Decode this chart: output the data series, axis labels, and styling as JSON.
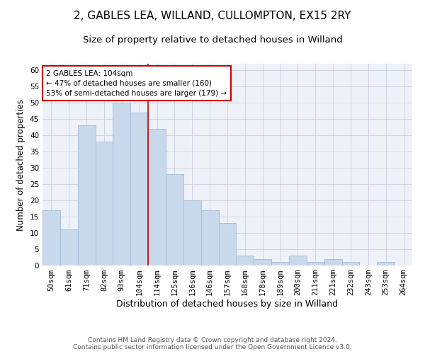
{
  "title": "2, GABLES LEA, WILLAND, CULLOMPTON, EX15 2RY",
  "subtitle": "Size of property relative to detached houses in Willand",
  "xlabel": "Distribution of detached houses by size in Willand",
  "ylabel": "Number of detached properties",
  "categories": [
    "50sqm",
    "61sqm",
    "71sqm",
    "82sqm",
    "93sqm",
    "104sqm",
    "114sqm",
    "125sqm",
    "136sqm",
    "146sqm",
    "157sqm",
    "168sqm",
    "178sqm",
    "189sqm",
    "200sqm",
    "211sqm",
    "221sqm",
    "232sqm",
    "243sqm",
    "253sqm",
    "264sqm"
  ],
  "values": [
    17,
    11,
    43,
    38,
    50,
    47,
    42,
    28,
    20,
    17,
    13,
    3,
    2,
    1,
    3,
    1,
    2,
    1,
    0,
    1,
    0
  ],
  "bar_color": "#c9d9ec",
  "bar_edgecolor": "#a0b8d8",
  "vline_x_index": 5,
  "vline_color": "#cc0000",
  "annotation_text": "2 GABLES LEA: 104sqm\n← 47% of detached houses are smaller (160)\n53% of semi-detached houses are larger (179) →",
  "annotation_box_color": "#ffffff",
  "annotation_box_edgecolor": "#cc0000",
  "ylim": [
    0,
    62
  ],
  "yticks": [
    0,
    5,
    10,
    15,
    20,
    25,
    30,
    35,
    40,
    45,
    50,
    55,
    60
  ],
  "grid_color": "#c8d0dc",
  "background_color": "#eef2f8",
  "footer_text": "Contains HM Land Registry data © Crown copyright and database right 2024.\nContains public sector information licensed under the Open Government Licence v3.0.",
  "title_fontsize": 11,
  "subtitle_fontsize": 9.5,
  "xlabel_fontsize": 9,
  "ylabel_fontsize": 8.5,
  "tick_fontsize": 7.5,
  "footer_fontsize": 6.5
}
